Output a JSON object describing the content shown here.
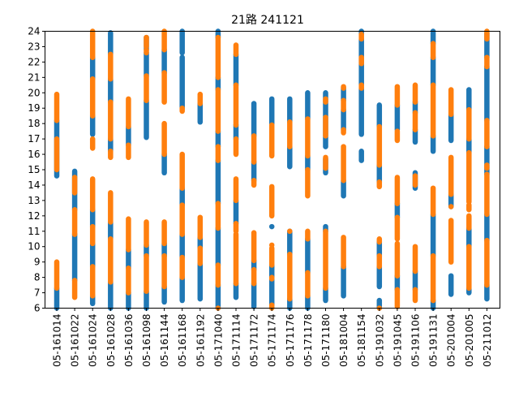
{
  "chart_data": {
    "type": "scatter",
    "title": "21路  241121",
    "xlabel": "",
    "ylabel": "",
    "ylim": [
      6,
      24
    ],
    "yticks": [
      6,
      7,
      8,
      9,
      10,
      11,
      12,
      13,
      14,
      15,
      16,
      17,
      18,
      19,
      20,
      21,
      22,
      23,
      24
    ],
    "grid": false,
    "categories": [
      "05-161014",
      "05-161022",
      "05-161024",
      "05-161028",
      "05-161036",
      "05-161098",
      "05-161144",
      "05-161168",
      "05-161192",
      "05-171040",
      "05-171114",
      "05-171172",
      "05-171174",
      "05-171176",
      "05-171178",
      "05-171180",
      "05-181004",
      "05-181154",
      "05-191032",
      "05-191045",
      "05-191106",
      "05-191131",
      "05-201004",
      "05-201005",
      "05-211012"
    ],
    "colors": {
      "blue": "#1f77b4",
      "orange": "#ff7f0e"
    },
    "series": [
      {
        "color": "blue",
        "segments": [
          [
            [
              6.0,
              7.3
            ],
            [
              14.6,
              18.2
            ]
          ],
          [
            [
              7.8,
              10.8
            ],
            [
              12.4,
              14.9
            ]
          ],
          [
            [
              6.3,
              6.8
            ],
            [
              8.7,
              10.2
            ],
            [
              11.3,
              12.4
            ],
            [
              17.3,
              18.5
            ],
            [
              20.9,
              22.3
            ]
          ],
          [
            [
              6.0,
              7.7
            ],
            [
              10.5,
              11.6
            ],
            [
              16.2,
              17.0
            ],
            [
              19.4,
              20.9
            ],
            [
              22.5,
              23.9
            ]
          ],
          [
            [
              6.0,
              7.0
            ],
            [
              8.6,
              9.8
            ],
            [
              16.6,
              17.8
            ]
          ],
          [
            [
              6.0,
              7.1
            ],
            [
              9.4,
              10.1
            ],
            [
              17.1,
              19.5
            ],
            [
              21.1,
              22.6
            ],
            [
              22.8,
              23.6
            ]
          ],
          [
            [
              6.4,
              7.4
            ],
            [
              9.4,
              10.2
            ],
            [
              14.8,
              16.0
            ],
            [
              21.3,
              22.8
            ]
          ],
          [
            [
              6.5,
              8.0
            ],
            [
              9.3,
              10.8
            ],
            [
              12.7,
              13.8
            ],
            [
              19.0,
              22.3
            ],
            [
              22.6,
              24.0
            ]
          ],
          [
            [
              6.6,
              8.9
            ],
            [
              9.9,
              10.6
            ],
            [
              18.1,
              19.3
            ]
          ],
          [
            [
              6.0,
              7.5
            ],
            [
              8.8,
              11.2
            ],
            [
              12.8,
              15.6
            ],
            [
              16.5,
              17.5
            ],
            [
              20.2,
              21.0
            ],
            [
              23.6,
              24.0
            ]
          ],
          [
            [
              6.7,
              7.6
            ],
            [
              11.5,
              13.0
            ],
            [
              17.0,
              17.9
            ],
            [
              20.5,
              22.5
            ]
          ],
          [
            [
              6.1,
              7.6
            ],
            [
              8.5,
              9.1
            ],
            [
              14.3,
              15.5
            ],
            [
              17.2,
              19.3
            ]
          ],
          [
            [
              6.2,
              7.9
            ],
            [
              8.0,
              8.8
            ],
            [
              11.3,
              11.3
            ],
            [
              18.0,
              19.6
            ]
          ],
          [
            [
              6.0,
              6.6
            ],
            [
              9.5,
              11.0
            ],
            [
              15.2,
              16.5
            ],
            [
              18.1,
              19.6
            ]
          ],
          [
            [
              6.0,
              6.8
            ],
            [
              8.3,
              10.5
            ],
            [
              15.0,
              15.9
            ],
            [
              18.3,
              20.0
            ]
          ],
          [
            [
              6.5,
              7.3
            ],
            [
              11.0,
              11.3
            ],
            [
              14.8,
              15.7
            ],
            [
              16.5,
              20.0
            ]
          ],
          [
            [
              6.8,
              8.7
            ],
            [
              13.3,
              14.3
            ],
            [
              17.6,
              18.9
            ],
            [
              19.5,
              20.3
            ]
          ],
          [
            [
              15.6,
              16.2
            ],
            [
              17.3,
              20.3
            ],
            [
              20.5,
              23.5
            ],
            [
              23.8,
              24.0
            ]
          ],
          [
            [
              6.0,
              6.5
            ],
            [
              7.4,
              8.7
            ],
            [
              9.4,
              10.3
            ],
            [
              14.2,
              15.3
            ],
            [
              17.8,
              19.2
            ]
          ],
          [
            [
              7.2,
              8.1
            ],
            [
              11.9,
              12.8
            ],
            [
              17.6,
              19.2
            ]
          ],
          [
            [
              7.2,
              8.4
            ],
            [
              13.8,
              14.8
            ],
            [
              16.8,
              17.6
            ],
            [
              18.7,
              19.4
            ]
          ],
          [
            [
              6.0,
              6.5
            ],
            [
              9.4,
              12.1
            ],
            [
              16.2,
              17.2
            ],
            [
              20.5,
              22.3
            ],
            [
              23.2,
              24.0
            ]
          ],
          [
            [
              6.9,
              8.1
            ],
            [
              12.6,
              13.4
            ],
            [
              16.9,
              18.6
            ]
          ],
          [
            [
              7.0,
              7.3
            ],
            [
              10.0,
              11.2
            ],
            [
              16.1,
              17.0
            ],
            [
              18.9,
              20.2
            ]
          ],
          [
            [
              6.6,
              7.5
            ],
            [
              10.4,
              12.1
            ],
            [
              14.7,
              16.5
            ],
            [
              18.2,
              21.7
            ],
            [
              22.3,
              23.9
            ]
          ]
        ]
      },
      {
        "color": "orange",
        "segments": [
          [
            [
              7.3,
              9.0
            ],
            [
              15.0,
              17.0
            ],
            [
              18.2,
              19.9
            ]
          ],
          [
            [
              6.7,
              7.8
            ],
            [
              10.8,
              12.4
            ],
            [
              13.5,
              14.5
            ]
          ],
          [
            [
              6.8,
              8.7
            ],
            [
              10.2,
              11.3
            ],
            [
              12.4,
              14.4
            ],
            [
              16.4,
              17.0
            ],
            [
              18.5,
              20.9
            ],
            [
              22.3,
              24.0
            ]
          ],
          [
            [
              7.7,
              10.5
            ],
            [
              11.6,
              13.5
            ],
            [
              15.8,
              16.2
            ],
            [
              17.0,
              19.4
            ],
            [
              20.9,
              22.5
            ]
          ],
          [
            [
              7.0,
              8.6
            ],
            [
              9.8,
              11.8
            ],
            [
              15.8,
              16.6
            ],
            [
              17.8,
              19.6
            ]
          ],
          [
            [
              7.1,
              9.4
            ],
            [
              10.1,
              11.6
            ],
            [
              19.5,
              21.1
            ],
            [
              22.6,
              22.8
            ],
            [
              23.0,
              23.6
            ]
          ],
          [
            [
              7.4,
              9.4
            ],
            [
              10.2,
              11.6
            ],
            [
              16.0,
              18.0
            ],
            [
              19.4,
              21.3
            ],
            [
              22.8,
              24.0
            ]
          ],
          [
            [
              8.0,
              9.3
            ],
            [
              10.8,
              12.7
            ],
            [
              13.8,
              16.0
            ],
            [
              18.8,
              19.0
            ]
          ],
          [
            [
              8.9,
              9.9
            ],
            [
              10.6,
              11.9
            ],
            [
              19.3,
              19.9
            ]
          ],
          [
            [
              6.0,
              6.0
            ],
            [
              7.5,
              8.8
            ],
            [
              11.2,
              12.8
            ],
            [
              15.6,
              16.5
            ],
            [
              17.5,
              20.2
            ],
            [
              21.0,
              23.6
            ]
          ],
          [
            [
              7.6,
              10.8
            ],
            [
              11.0,
              11.5
            ],
            [
              13.0,
              14.4
            ],
            [
              16.0,
              17.0
            ],
            [
              17.9,
              20.5
            ],
            [
              22.5,
              23.1
            ]
          ],
          [
            [
              7.6,
              8.5
            ],
            [
              9.1,
              10.9
            ],
            [
              14.0,
              14.3
            ],
            [
              15.5,
              17.2
            ]
          ],
          [
            [
              6.0,
              6.2
            ],
            [
              7.9,
              8.0
            ],
            [
              8.8,
              9.9
            ],
            [
              10.1,
              10.1
            ],
            [
              12.0,
              13.9
            ],
            [
              15.9,
              17.9
            ]
          ],
          [
            [
              6.6,
              9.5
            ],
            [
              11.0,
              11.0
            ],
            [
              16.5,
              18.1
            ]
          ],
          [
            [
              6.8,
              8.3
            ],
            [
              10.5,
              11.0
            ],
            [
              13.3,
              15.0
            ],
            [
              15.9,
              18.3
            ]
          ],
          [
            [
              7.3,
              11.0
            ],
            [
              15.1,
              15.8
            ],
            [
              17.2,
              18.4
            ],
            [
              19.4,
              19.6
            ]
          ],
          [
            [
              8.7,
              10.6
            ],
            [
              14.3,
              16.5
            ],
            [
              17.4,
              17.6
            ],
            [
              18.9,
              19.5
            ],
            [
              20.3,
              20.4
            ]
          ],
          [
            [
              20.3,
              20.5
            ],
            [
              21.9,
              22.3
            ],
            [
              23.5,
              23.8
            ]
          ],
          [
            [
              6.0,
              6.0
            ],
            [
              8.7,
              9.4
            ],
            [
              10.3,
              10.5
            ],
            [
              13.9,
              14.2
            ],
            [
              15.3,
              17.8
            ]
          ],
          [
            [
              6.1,
              7.2
            ],
            [
              8.1,
              10.2
            ],
            [
              10.5,
              11.9
            ],
            [
              12.8,
              14.5
            ],
            [
              16.9,
              17.5
            ],
            [
              19.2,
              20.4
            ]
          ],
          [
            [
              6.5,
              7.2
            ],
            [
              8.4,
              10.0
            ],
            [
              14.0,
              14.6
            ],
            [
              17.6,
              18.7
            ],
            [
              19.4,
              20.5
            ]
          ],
          [
            [
              6.5,
              9.4
            ],
            [
              12.1,
              13.8
            ],
            [
              17.2,
              20.5
            ],
            [
              22.3,
              23.2
            ]
          ],
          [
            [
              9.0,
              11.7
            ],
            [
              12.6,
              12.6
            ],
            [
              13.4,
              15.8
            ],
            [
              18.6,
              20.2
            ]
          ],
          [
            [
              7.3,
              10.0
            ],
            [
              11.2,
              12.0
            ],
            [
              12.4,
              12.7
            ],
            [
              12.9,
              16.1
            ],
            [
              17.0,
              18.9
            ]
          ],
          [
            [
              7.5,
              10.4
            ],
            [
              12.1,
              14.7
            ],
            [
              15.1,
              15.3
            ],
            [
              16.5,
              18.2
            ],
            [
              21.7,
              22.3
            ],
            [
              23.5,
              24.0
            ]
          ]
        ]
      }
    ]
  }
}
